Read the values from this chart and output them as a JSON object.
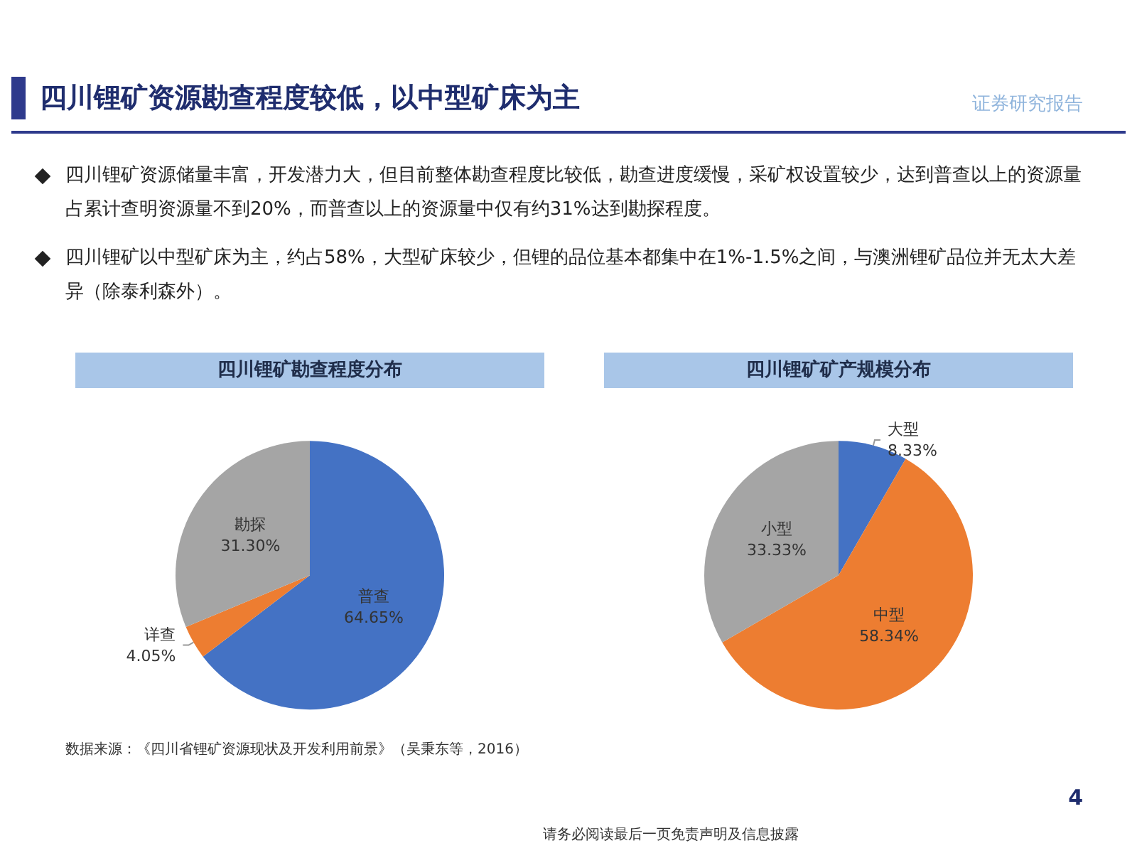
{
  "chart_data": [
    {
      "type": "other",
      "title": "四川锂矿资源勘查程度较低，以中型矿床为主",
      "subtitle": "证券研究报告",
      "annotations": [
        "四川锂矿资源储量丰富，开发潜力大，但目前整体勘查程度比较低，勘查进度缓慢，采矿权设置较少，达到普查以上的资源量占累计查明资源量不到20%，而普查以上的资源量中仅有约31%达到勘探程度。",
        "四川锂矿以中型矿床为主，约占58%，大型矿床较少，但锂的品位基本都集中在1%-1.5%之间，与澳洲锂矿品位并无太大差异（除泰利森外）。",
        "数据来源：《四川省锂矿资源现状及开发利用前景》（吴秉东等，2016）",
        "请务必阅读最后一页免责声明及信息披露",
        "4"
      ]
    },
    {
      "type": "pie",
      "title": "四川锂矿勘查程度分布",
      "categories": [
        "普查",
        "详查",
        "勘探"
      ],
      "values": [
        64.65,
        4.05,
        31.3
      ],
      "colors": [
        "#4472c4",
        "#ed7d31",
        "#a5a5a5"
      ],
      "value_labels": [
        "64.65%",
        "4.05%",
        "31.30%"
      ]
    },
    {
      "type": "pie",
      "title": "四川锂矿矿产规模分布",
      "categories": [
        "大型",
        "中型",
        "小型"
      ],
      "values": [
        8.33,
        58.34,
        33.33
      ],
      "colors": [
        "#4472c4",
        "#ed7d31",
        "#a5a5a5"
      ],
      "value_labels": [
        "8.33%",
        "58.34%",
        "33.33%"
      ]
    }
  ]
}
